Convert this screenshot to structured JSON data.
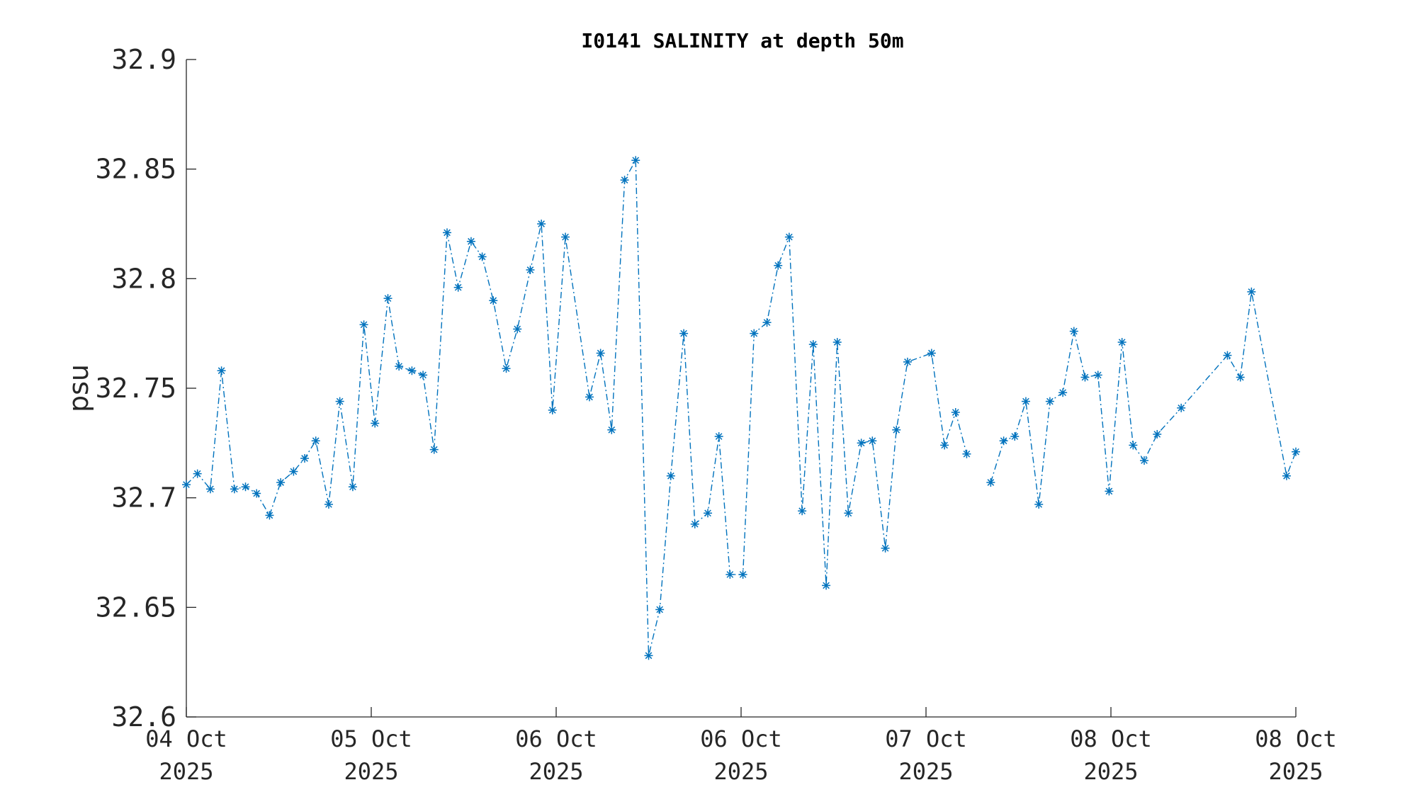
{
  "chart_data": {
    "type": "line",
    "title": "I0141 SALINITY at depth 50m",
    "xlabel": "",
    "ylabel": "psu",
    "ylim": [
      32.6,
      32.9
    ],
    "xlim": [
      "2025-10-04",
      "2025-10-10"
    ],
    "line_color": "#0072BD",
    "line_style": "dash-dot",
    "marker": "asterisk",
    "grid": false,
    "y_ticks": [
      "32.6",
      "32.65",
      "32.7",
      "32.75",
      "32.8",
      "32.85",
      "32.9"
    ],
    "x_ticks": [
      {
        "line1": "04 Oct",
        "line2": "2025"
      },
      {
        "line1": "05 Oct",
        "line2": "2025"
      },
      {
        "line1": "06 Oct",
        "line2": "2025"
      },
      {
        "line1": "06 Oct",
        "line2": "2025"
      },
      {
        "line1": "07 Oct",
        "line2": "2025"
      },
      {
        "line1": "08 Oct",
        "line2": "2025"
      },
      {
        "line1": "08 Oct",
        "line2": "2025"
      }
    ],
    "x_unit": "days after 2025-10-04 00:00",
    "series": [
      {
        "points": [
          [
            0.0,
            32.706
          ],
          [
            0.06,
            32.711
          ],
          [
            0.13,
            32.704
          ],
          [
            0.19,
            32.758
          ],
          [
            0.26,
            32.704
          ],
          [
            0.32,
            32.705
          ],
          [
            0.38,
            32.702
          ],
          [
            0.45,
            32.692
          ],
          [
            0.51,
            32.707
          ],
          [
            0.58,
            32.712
          ],
          [
            0.64,
            32.718
          ],
          [
            0.7,
            32.726
          ],
          [
            0.77,
            32.697
          ],
          [
            0.83,
            32.744
          ],
          [
            0.9,
            32.705
          ],
          [
            0.96,
            32.779
          ],
          [
            1.02,
            32.734
          ],
          [
            1.09,
            32.791
          ],
          [
            1.15,
            32.76
          ],
          [
            1.22,
            32.758
          ],
          [
            1.28,
            32.756
          ],
          [
            1.34,
            32.722
          ],
          [
            1.41,
            32.821
          ],
          [
            1.47,
            32.796
          ],
          [
            1.54,
            32.817
          ],
          [
            1.6,
            32.81
          ],
          [
            1.66,
            32.79
          ],
          [
            1.73,
            32.759
          ],
          [
            1.79,
            32.777
          ],
          [
            1.86,
            32.804
          ],
          [
            1.92,
            32.825
          ],
          [
            1.98,
            32.74
          ],
          [
            2.05,
            32.819
          ],
          [
            2.18,
            32.746
          ],
          [
            2.24,
            32.766
          ],
          [
            2.3,
            32.731
          ],
          [
            2.37,
            32.845
          ],
          [
            2.43,
            32.854
          ],
          [
            2.5,
            32.628
          ],
          [
            2.56,
            32.649
          ],
          [
            2.62,
            32.71
          ],
          [
            2.69,
            32.775
          ],
          [
            2.75,
            32.688
          ],
          [
            2.82,
            32.693
          ],
          [
            2.88,
            32.728
          ],
          [
            2.94,
            32.665
          ],
          [
            3.01,
            32.665
          ],
          [
            3.07,
            32.775
          ],
          [
            3.14,
            32.78
          ],
          [
            3.2,
            32.806
          ],
          [
            3.26,
            32.819
          ],
          [
            3.33,
            32.694
          ],
          [
            3.39,
            32.77
          ],
          [
            3.46,
            32.66
          ],
          [
            3.52,
            32.771
          ],
          [
            3.58,
            32.693
          ],
          [
            3.65,
            32.725
          ],
          [
            3.71,
            32.726
          ],
          [
            3.78,
            32.677
          ],
          [
            3.84,
            32.731
          ],
          [
            3.9,
            32.762
          ],
          [
            4.03,
            32.766
          ],
          [
            4.1,
            32.724
          ],
          [
            4.16,
            32.739
          ],
          [
            4.22,
            32.72
          ]
        ]
      },
      {
        "points": [
          [
            4.35,
            32.707
          ],
          [
            4.42,
            32.726
          ],
          [
            4.48,
            32.728
          ],
          [
            4.54,
            32.744
          ],
          [
            4.61,
            32.697
          ],
          [
            4.67,
            32.744
          ],
          [
            4.74,
            32.748
          ],
          [
            4.8,
            32.776
          ],
          [
            4.86,
            32.755
          ],
          [
            4.93,
            32.756
          ],
          [
            4.99,
            32.703
          ],
          [
            5.06,
            32.771
          ],
          [
            5.12,
            32.724
          ],
          [
            5.18,
            32.717
          ],
          [
            5.25,
            32.729
          ],
          [
            5.38,
            32.741
          ],
          [
            5.63,
            32.765
          ],
          [
            5.7,
            32.755
          ],
          [
            5.76,
            32.794
          ],
          [
            5.95,
            32.71
          ],
          [
            6.0,
            32.721
          ]
        ]
      }
    ]
  }
}
